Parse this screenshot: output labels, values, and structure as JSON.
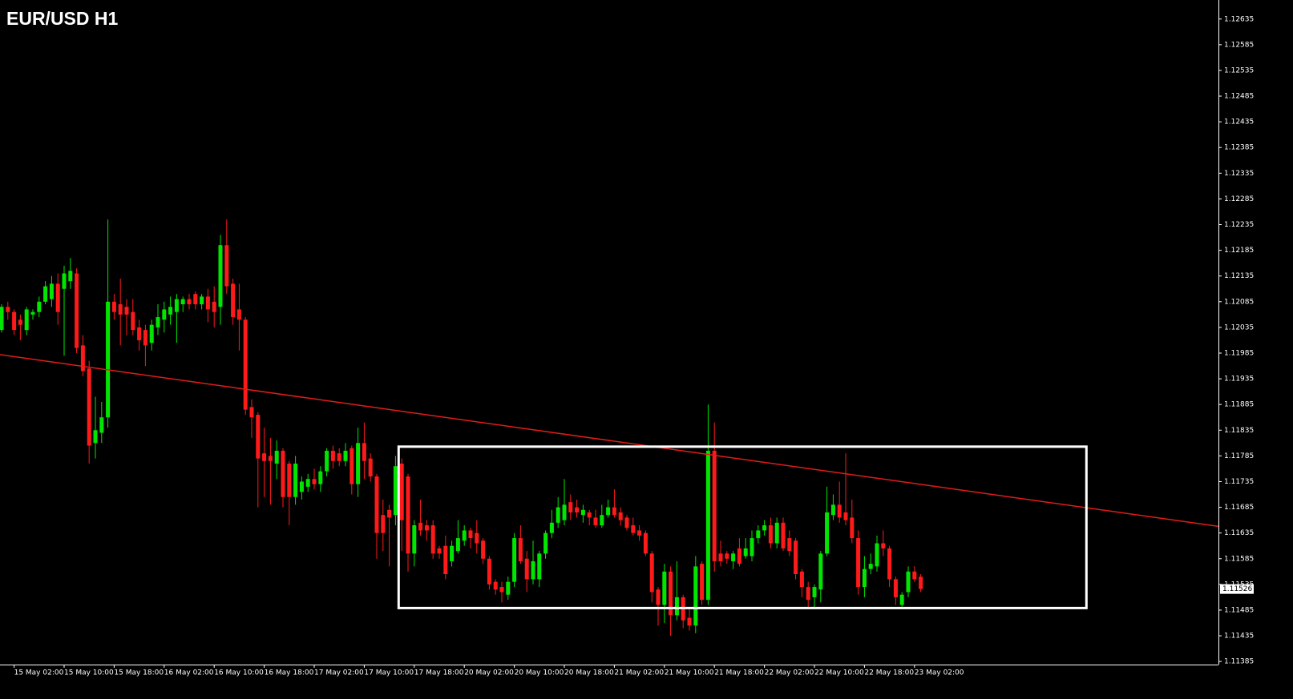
{
  "chart_data": {
    "type": "candlestick",
    "title": "EUR/USD H1",
    "categories": [
      null,
      null,
      "15 May 02:00",
      null,
      null,
      null,
      null,
      null,
      null,
      null,
      "15 May 10:00",
      null,
      null,
      null,
      null,
      null,
      null,
      null,
      "15 May 18:00",
      null,
      null,
      null,
      null,
      null,
      null,
      null,
      "16 May 02:00",
      null,
      null,
      null,
      null,
      null,
      null,
      null,
      "16 May 10:00",
      null,
      null,
      null,
      null,
      null,
      null,
      null,
      "16 May 18:00",
      null,
      null,
      null,
      null,
      null,
      null,
      null,
      "17 May 02:00",
      null,
      null,
      null,
      null,
      null,
      null,
      null,
      "17 May 10:00",
      null,
      null,
      null,
      null,
      null,
      null,
      null,
      "17 May 18:00",
      null,
      null,
      null,
      null,
      null,
      null,
      null,
      "20 May 02:00",
      null,
      null,
      null,
      null,
      null,
      null,
      null,
      "20 May 10:00",
      null,
      null,
      null,
      null,
      null,
      null,
      null,
      "20 May 18:00",
      null,
      null,
      null,
      null,
      null,
      null,
      null,
      "21 May 02:00",
      null,
      null,
      null,
      null,
      null,
      null,
      null,
      "21 May 10:00",
      null,
      null,
      null,
      null,
      null,
      null,
      null,
      "21 May 18:00",
      null,
      null,
      null,
      null,
      null,
      null,
      null,
      "22 May 02:00",
      null,
      null,
      null,
      null,
      null,
      null,
      null,
      "22 May 10:00",
      null,
      null,
      null,
      null,
      null,
      null,
      null,
      "22 May 18:00",
      null,
      null,
      null,
      null,
      null,
      null,
      null,
      "23 May 02:00",
      null
    ],
    "open": [
      1.1203,
      1.12075,
      1.12065,
      1.1205,
      1.1203,
      1.1206,
      1.12065,
      1.12085,
      1.1209,
      1.1212,
      1.1211,
      1.12125,
      1.1214,
      1.12,
      1.11955,
      1.1181,
      1.1183,
      1.1186,
      1.12085,
      1.1208,
      1.12075,
      1.12065,
      1.12035,
      1.1203,
      1.12005,
      1.12035,
      1.1205,
      1.1206,
      1.12065,
      1.1208,
      1.1209,
      1.121,
      1.1208,
      1.12095,
      1.12085,
      1.12075,
      1.12195,
      1.1212,
      1.1207,
      1.1205,
      1.1188,
      1.11865,
      1.1179,
      1.11785,
      1.1177,
      1.11795,
      1.1177,
      1.11705,
      1.11715,
      1.11725,
      1.1174,
      1.1173,
      1.11755,
      1.11795,
      1.1179,
      1.11775,
      1.118,
      1.1173,
      1.1181,
      1.1178,
      1.11745,
      1.1167,
      1.1168,
      1.1167,
      1.1177,
      1.11745,
      1.11595,
      1.11655,
      1.1165,
      1.1165,
      1.11605,
      1.1161,
      1.1158,
      1.116,
      1.1162,
      1.1164,
      1.11635,
      1.1162,
      1.11585,
      1.1154,
      1.1153,
      1.11515,
      1.1154,
      1.11625,
      1.11585,
      1.11545,
      1.11545,
      1.11595,
      1.11635,
      1.11655,
      1.1166,
      1.11695,
      1.11685,
      1.1167,
      1.11675,
      1.11665,
      1.1165,
      1.1167,
      1.11685,
      1.11675,
      1.11665,
      1.1165,
      1.1164,
      1.11635,
      1.11595,
      1.11525,
      1.11495,
      1.1156,
      1.11475,
      1.1151,
      1.1147,
      1.11455,
      1.11575,
      1.11505,
      1.11795,
      1.11595,
      1.11595,
      1.1158,
      1.11605,
      1.1159,
      1.1159,
      1.11625,
      1.1164,
      1.1165,
      1.11615,
      1.11655,
      1.11625,
      1.1162,
      1.1156,
      1.1153,
      1.1151,
      1.11525,
      1.11595,
      1.1167,
      1.1169,
      1.11675,
      1.11665,
      1.11625,
      1.1153,
      1.11565,
      1.1157,
      1.11615,
      1.11605,
      1.11545,
      1.11495,
      1.1152,
      1.1156,
      1.1155
    ],
    "high": [
      1.1208,
      1.12085,
      1.1207,
      1.1206,
      1.12075,
      1.1207,
      1.12095,
      1.12125,
      1.12135,
      1.1214,
      1.12155,
      1.1217,
      1.1215,
      1.1202,
      1.1197,
      1.119,
      1.1189,
      1.12245,
      1.121,
      1.1213,
      1.1209,
      1.1209,
      1.1205,
      1.1204,
      1.1205,
      1.1208,
      1.12085,
      1.12095,
      1.121,
      1.12095,
      1.121,
      1.12105,
      1.121,
      1.1211,
      1.12115,
      1.12215,
      1.12245,
      1.1213,
      1.1212,
      1.12055,
      1.11895,
      1.1187,
      1.1184,
      1.1182,
      1.11815,
      1.118,
      1.11775,
      1.11785,
      1.11745,
      1.1175,
      1.1176,
      1.11765,
      1.118,
      1.11805,
      1.118,
      1.1181,
      1.11805,
      1.1184,
      1.1185,
      1.1179,
      1.1175,
      1.117,
      1.1169,
      1.11785,
      1.1178,
      1.1175,
      1.1166,
      1.117,
      1.1166,
      1.1166,
      1.1161,
      1.1163,
      1.1162,
      1.1166,
      1.1165,
      1.11645,
      1.1166,
      1.11625,
      1.1159,
      1.11545,
      1.1154,
      1.1155,
      1.11635,
      1.1165,
      1.116,
      1.1162,
      1.116,
      1.1164,
      1.1168,
      1.11705,
      1.1174,
      1.1171,
      1.117,
      1.1169,
      1.1168,
      1.1168,
      1.1169,
      1.117,
      1.1172,
      1.11685,
      1.1167,
      1.11665,
      1.1165,
      1.1164,
      1.116,
      1.1153,
      1.11575,
      1.1157,
      1.1158,
      1.11515,
      1.1149,
      1.1159,
      1.1158,
      1.11885,
      1.1185,
      1.1162,
      1.116,
      1.116,
      1.11625,
      1.11625,
      1.1164,
      1.1165,
      1.1166,
      1.11665,
      1.11665,
      1.11665,
      1.1164,
      1.11625,
      1.11565,
      1.1154,
      1.11535,
      1.116,
      1.11725,
      1.1171,
      1.11735,
      1.1179,
      1.117,
      1.1164,
      1.1159,
      1.11595,
      1.1163,
      1.1164,
      1.1161,
      1.1155,
      1.1152,
      1.1157,
      1.1157,
      1.11555
    ],
    "low": [
      1.12025,
      1.1205,
      1.1202,
      1.1201,
      1.1202,
      1.1205,
      1.12055,
      1.1208,
      1.12075,
      1.1204,
      1.1198,
      1.1211,
      1.11985,
      1.1194,
      1.1177,
      1.1178,
      1.1181,
      1.1184,
      1.1205,
      1.12,
      1.1202,
      1.1202,
      1.1199,
      1.1196,
      1.1199,
      1.1202,
      1.12025,
      1.1204,
      1.12005,
      1.12065,
      1.1207,
      1.1207,
      1.1207,
      1.12045,
      1.12035,
      1.1204,
      1.121,
      1.1204,
      1.1199,
      1.11865,
      1.1182,
      1.11685,
      1.11705,
      1.1169,
      1.1174,
      1.11685,
      1.1165,
      1.1169,
      1.117,
      1.11715,
      1.1172,
      1.11715,
      1.11745,
      1.1176,
      1.11765,
      1.11765,
      1.1171,
      1.11705,
      1.1174,
      1.11735,
      1.11585,
      1.116,
      1.1157,
      1.1165,
      1.116,
      1.1156,
      1.1157,
      1.1163,
      1.1162,
      1.11585,
      1.11585,
      1.11545,
      1.1157,
      1.11595,
      1.1161,
      1.11605,
      1.11595,
      1.11575,
      1.11525,
      1.11515,
      1.115,
      1.11505,
      1.1153,
      1.11575,
      1.1152,
      1.11535,
      1.1153,
      1.11585,
      1.11625,
      1.11645,
      1.1165,
      1.1166,
      1.11665,
      1.11655,
      1.1165,
      1.11645,
      1.11645,
      1.11665,
      1.11665,
      1.1165,
      1.1164,
      1.1163,
      1.1162,
      1.1159,
      1.115,
      1.11455,
      1.1146,
      1.11435,
      1.11465,
      1.1145,
      1.11445,
      1.1144,
      1.11495,
      1.11495,
      1.1156,
      1.1157,
      1.11575,
      1.11565,
      1.1157,
      1.11585,
      1.1158,
      1.11615,
      1.1163,
      1.11605,
      1.11605,
      1.116,
      1.1159,
      1.11545,
      1.1151,
      1.1149,
      1.1149,
      1.115,
      1.1159,
      1.1166,
      1.11655,
      1.1165,
      1.11615,
      1.11515,
      1.1151,
      1.11555,
      1.1156,
      1.1159,
      1.1153,
      1.11495,
      1.1149,
      1.1151,
      1.1154,
      1.1152
    ],
    "close": [
      1.12075,
      1.12065,
      1.1203,
      1.1204,
      1.1207,
      1.12065,
      1.12085,
      1.12115,
      1.1212,
      1.12065,
      1.1214,
      1.12145,
      1.11995,
      1.1195,
      1.11805,
      1.11835,
      1.1186,
      1.12085,
      1.12065,
      1.1206,
      1.1206,
      1.1203,
      1.1201,
      1.12,
      1.1204,
      1.12055,
      1.1207,
      1.12075,
      1.1209,
      1.1209,
      1.1208,
      1.1208,
      1.12095,
      1.1207,
      1.12065,
      1.12195,
      1.12115,
      1.12055,
      1.1205,
      1.11875,
      1.1186,
      1.1178,
      1.11775,
      1.11775,
      1.11795,
      1.11705,
      1.11705,
      1.1177,
      1.11735,
      1.1174,
      1.1173,
      1.11755,
      1.11795,
      1.11775,
      1.11775,
      1.11795,
      1.1173,
      1.1181,
      1.11775,
      1.11745,
      1.11635,
      1.11635,
      1.11665,
      1.11765,
      1.1166,
      1.11595,
      1.1165,
      1.1164,
      1.1164,
      1.11595,
      1.11595,
      1.11555,
      1.1161,
      1.11625,
      1.1164,
      1.11625,
      1.11615,
      1.11585,
      1.11535,
      1.11525,
      1.1152,
      1.1154,
      1.11625,
      1.1158,
      1.11545,
      1.1158,
      1.11595,
      1.11635,
      1.11655,
      1.11685,
      1.1169,
      1.11675,
      1.11675,
      1.1168,
      1.11665,
      1.1165,
      1.1167,
      1.11685,
      1.1167,
      1.1166,
      1.11645,
      1.11635,
      1.1163,
      1.11595,
      1.1152,
      1.11495,
      1.1156,
      1.11475,
      1.1151,
      1.11465,
      1.11455,
      1.1157,
      1.11505,
      1.11795,
      1.1158,
      1.1158,
      1.11585,
      1.11595,
      1.11575,
      1.11605,
      1.11625,
      1.1164,
      1.1165,
      1.11615,
      1.11655,
      1.11605,
      1.116,
      1.11555,
      1.1153,
      1.11505,
      1.1153,
      1.11595,
      1.11675,
      1.1169,
      1.11665,
      1.1166,
      1.11625,
      1.1153,
      1.11565,
      1.11575,
      1.11615,
      1.11605,
      1.11545,
      1.1151,
      1.11515,
      1.1156,
      1.11545,
      1.11526
    ],
    "up_color": "#00e600",
    "down_color": "#ff1a1a",
    "ylim": [
      1.11379,
      1.12672
    ],
    "yticks": [
      1.11385,
      1.11435,
      1.11485,
      1.11535,
      1.11585,
      1.11635,
      1.11685,
      1.11735,
      1.11785,
      1.11835,
      1.11885,
      1.11935,
      1.11985,
      1.12035,
      1.12085,
      1.12135,
      1.12185,
      1.12235,
      1.12285,
      1.12335,
      1.12385,
      1.12435,
      1.12485,
      1.12535,
      1.12585,
      1.12635
    ],
    "last_price": 1.11526,
    "trendline": {
      "x": [
        -0.256,
        194.6
      ],
      "y": [
        1.11982,
        1.11648
      ],
      "color": "#e31b1b"
    },
    "rectangle": {
      "x": [
        63.5,
        173.5
      ],
      "y": [
        1.11803,
        1.11489
      ],
      "color": "#ffffff"
    }
  }
}
